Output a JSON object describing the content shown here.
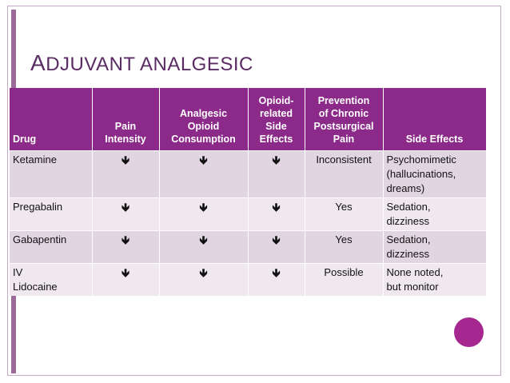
{
  "title": {
    "first": "A",
    "rest": "DJUVANT ANALGESIC"
  },
  "table": {
    "headers": [
      "Drug",
      "Pain Intensity",
      "Analgesic Opioid Consumption",
      "Opioid-related Side Effects",
      "Prevention of Chronic Postsurgical Pain",
      "Side Effects"
    ],
    "header_lines": [
      [
        "Drug"
      ],
      [
        "Pain",
        "Intensity"
      ],
      [
        "Analgesic",
        "Opioid",
        "Consumption"
      ],
      [
        "Opioid-",
        "related",
        "Side",
        "Effects"
      ],
      [
        "Prevention",
        "of Chronic",
        "Postsurgical",
        "Pain"
      ],
      [
        "Side Effects"
      ]
    ],
    "arrow": "🡻",
    "rows": [
      {
        "drug": "Ketamine",
        "drug_lines": [
          "Ketamine"
        ],
        "pain_intensity": "decrease",
        "opioid_consumption": "decrease",
        "opioid_side_effects": "decrease",
        "prevention": "Inconsistent",
        "side_effects": "Psychomimetic (hallucinations, dreams)",
        "side_effects_lines": [
          "Psychomimetic",
          "(hallucinations,",
          "dreams)"
        ]
      },
      {
        "drug": "Pregabalin",
        "drug_lines": [
          "Pregabalin"
        ],
        "pain_intensity": "decrease",
        "opioid_consumption": "decrease",
        "opioid_side_effects": "decrease",
        "prevention": "Yes",
        "side_effects": "Sedation, dizziness",
        "side_effects_lines": [
          "Sedation,",
          "dizziness"
        ]
      },
      {
        "drug": "Gabapentin",
        "drug_lines": [
          "Gabapentin"
        ],
        "pain_intensity": "decrease",
        "opioid_consumption": "decrease",
        "opioid_side_effects": "decrease",
        "prevention": "Yes",
        "side_effects": "Sedation, dizziness",
        "side_effects_lines": [
          "Sedation,",
          "dizziness"
        ]
      },
      {
        "drug": "IV Lidocaine",
        "drug_lines": [
          "IV",
          "Lidocaine"
        ],
        "pain_intensity": "decrease",
        "opioid_consumption": "decrease",
        "opioid_side_effects": "decrease",
        "prevention": "Possible",
        "side_effects": "None noted, but monitor",
        "side_effects_lines": [
          "None noted,",
          "but monitor"
        ]
      }
    ]
  },
  "colors": {
    "header_bg": "#8b2a89",
    "title": "#5a2c63",
    "accent": "#a6278f",
    "row_odd": "#e2d5e2",
    "row_even": "#efe8ef"
  }
}
